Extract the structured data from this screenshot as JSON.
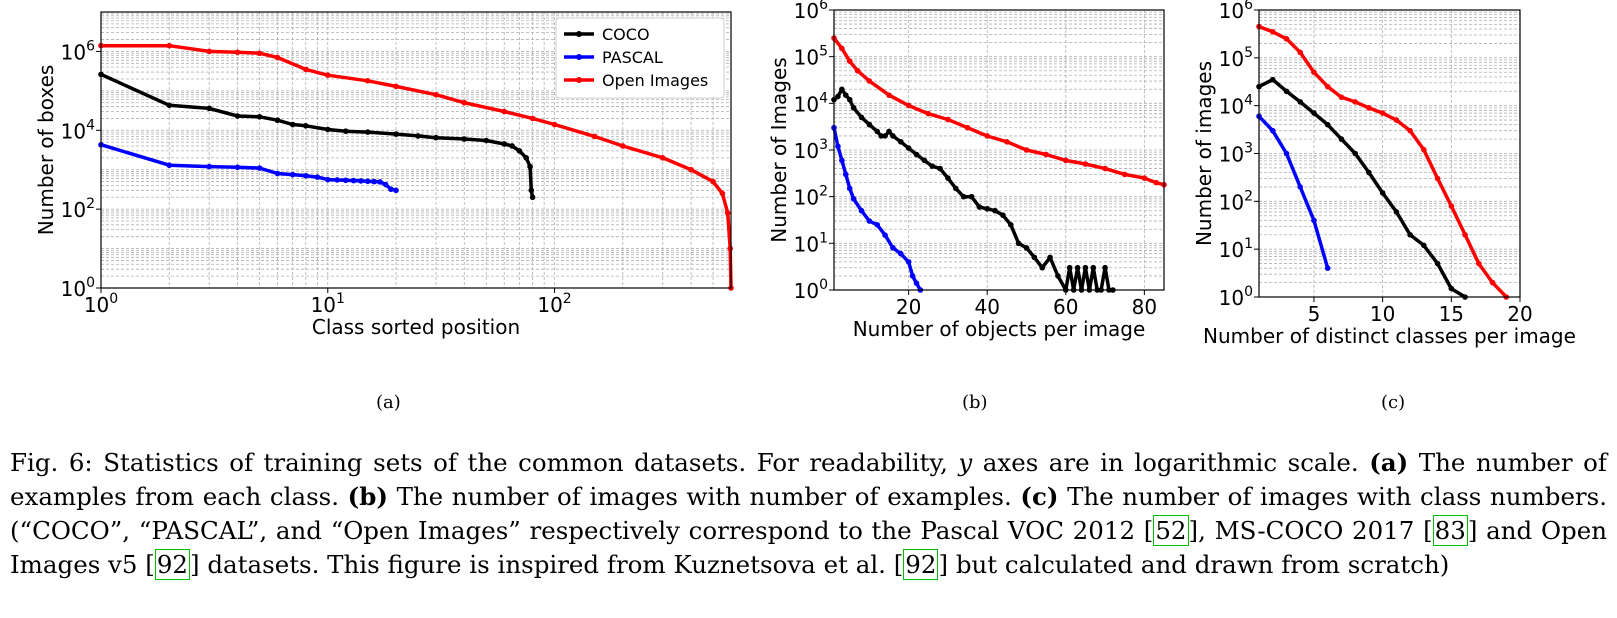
{
  "chart_data": [
    {
      "id": "a",
      "type": "line",
      "xscale": "log",
      "yscale": "log",
      "xlim": [
        1,
        600
      ],
      "ylim": [
        1,
        10000000
      ],
      "xlabel": "Class sorted position",
      "ylabel": "Number of boxes",
      "xticks": [
        1,
        10,
        100
      ],
      "xtick_labels": [
        [
          "10",
          "0"
        ],
        [
          "10",
          "1"
        ],
        [
          "10",
          "2"
        ]
      ],
      "yticks": [
        1,
        100,
        10000,
        1000000
      ],
      "ytick_labels": [
        [
          "10",
          "0"
        ],
        [
          "10",
          "2"
        ],
        [
          "10",
          "4"
        ],
        [
          "10",
          "6"
        ]
      ],
      "grid": true,
      "legend": "top-right",
      "legend_entries": [
        "COCO",
        "PASCAL",
        "Open Images"
      ],
      "series": [
        {
          "name": "COCO",
          "color": "#000000",
          "x": [
            1,
            2,
            3,
            4,
            5,
            6,
            7,
            8,
            10,
            12,
            15,
            20,
            25,
            30,
            40,
            50,
            60,
            65,
            70,
            75,
            78,
            79,
            80
          ],
          "y": [
            262000,
            43000,
            36000,
            23000,
            22000,
            18000,
            14000,
            13000,
            10500,
            9500,
            9000,
            8000,
            7200,
            6500,
            6000,
            5500,
            4500,
            4000,
            3000,
            2000,
            1200,
            300,
            200
          ]
        },
        {
          "name": "PASCAL",
          "color": "#0000ff",
          "x": [
            1,
            2,
            3,
            4,
            5,
            6,
            7,
            8,
            9,
            10,
            11,
            12,
            13,
            14,
            15,
            16,
            17,
            18,
            19,
            20
          ],
          "y": [
            4300,
            1300,
            1200,
            1150,
            1100,
            800,
            750,
            700,
            650,
            560,
            550,
            540,
            530,
            520,
            510,
            500,
            490,
            420,
            320,
            300
          ]
        },
        {
          "name": "Open Images",
          "color": "#ff0000",
          "x": [
            1,
            2,
            3,
            4,
            5,
            6,
            8,
            10,
            15,
            20,
            30,
            40,
            60,
            80,
            100,
            150,
            200,
            300,
            400,
            500,
            550,
            580,
            595,
            600
          ],
          "y": [
            1400000,
            1400000,
            1000000,
            950000,
            900000,
            700000,
            350000,
            250000,
            180000,
            130000,
            80000,
            50000,
            30000,
            20000,
            14000,
            7000,
            4000,
            2000,
            1000,
            500,
            250,
            80,
            10,
            1
          ]
        }
      ]
    },
    {
      "id": "b",
      "type": "line",
      "xscale": "linear",
      "yscale": "log",
      "xlim": [
        1,
        85
      ],
      "ylim": [
        1,
        1000000
      ],
      "xlabel": "Number of objects per image",
      "ylabel": "Number of Images",
      "xticks": [
        20,
        40,
        60,
        80
      ],
      "xtick_labels": [
        "20",
        "40",
        "60",
        "80"
      ],
      "yticks": [
        1,
        10,
        100,
        1000,
        10000,
        100000,
        1000000
      ],
      "ytick_labels": [
        [
          "10",
          "0"
        ],
        [
          "10",
          "1"
        ],
        [
          "10",
          "2"
        ],
        [
          "10",
          "3"
        ],
        [
          "10",
          "4"
        ],
        [
          "10",
          "5"
        ],
        [
          "10",
          "6"
        ]
      ],
      "grid": true,
      "series": [
        {
          "name": "Open Images",
          "color": "#ff0000",
          "x": [
            1,
            3,
            5,
            7,
            10,
            15,
            20,
            25,
            30,
            35,
            40,
            45,
            50,
            55,
            60,
            65,
            70,
            75,
            80,
            83,
            85
          ],
          "y": [
            250000,
            150000,
            80000,
            50000,
            30000,
            15000,
            9000,
            6000,
            4500,
            3000,
            2000,
            1500,
            1000,
            800,
            600,
            500,
            400,
            300,
            250,
            200,
            180
          ]
        },
        {
          "name": "COCO",
          "color": "#000000",
          "x": [
            1,
            2,
            3,
            4,
            5,
            6,
            8,
            10,
            12,
            13,
            14,
            15,
            16,
            18,
            20,
            22,
            24,
            26,
            28,
            30,
            32,
            34,
            36,
            38,
            40,
            42,
            44,
            46,
            48,
            50,
            52,
            54,
            56,
            58,
            60,
            61,
            62,
            63,
            64,
            65,
            66,
            67,
            68,
            69,
            70,
            71,
            72
          ],
          "y": [
            12000,
            14000,
            20000,
            15000,
            12000,
            8000,
            5000,
            3500,
            2500,
            2000,
            2000,
            2500,
            2000,
            1500,
            1100,
            800,
            600,
            450,
            400,
            250,
            150,
            100,
            100,
            60,
            55,
            50,
            40,
            25,
            10,
            8,
            5,
            3,
            5,
            2,
            1,
            3,
            1,
            3,
            1,
            3,
            1,
            3,
            1,
            1,
            3,
            1,
            1
          ]
        },
        {
          "name": "PASCAL",
          "color": "#0000ff",
          "x": [
            1,
            2,
            3,
            4,
            5,
            6,
            8,
            10,
            12,
            14,
            16,
            18,
            20,
            21,
            22,
            23
          ],
          "y": [
            3000,
            1200,
            600,
            300,
            150,
            90,
            50,
            30,
            25,
            15,
            8,
            6,
            4,
            2,
            1.4,
            1
          ]
        }
      ]
    },
    {
      "id": "c",
      "type": "line",
      "xscale": "linear",
      "yscale": "log",
      "xlim": [
        1,
        20
      ],
      "ylim": [
        1,
        1000000
      ],
      "xlabel": "Number of distinct classes per image",
      "ylabel": "Number of images",
      "xticks": [
        5,
        10,
        15,
        20
      ],
      "xtick_labels": [
        "5",
        "10",
        "15",
        "20"
      ],
      "yticks": [
        1,
        10,
        100,
        1000,
        10000,
        100000,
        1000000
      ],
      "ytick_labels": [
        [
          "10",
          "0"
        ],
        [
          "10",
          "1"
        ],
        [
          "10",
          "2"
        ],
        [
          "10",
          "3"
        ],
        [
          "10",
          "4"
        ],
        [
          "10",
          "5"
        ],
        [
          "10",
          "6"
        ]
      ],
      "grid": true,
      "series": [
        {
          "name": "Open Images",
          "color": "#ff0000",
          "x": [
            1,
            2,
            3,
            4,
            5,
            6,
            7,
            8,
            9,
            10,
            11,
            12,
            13,
            14,
            15,
            16,
            17,
            18,
            19
          ],
          "y": [
            450000,
            350000,
            250000,
            130000,
            50000,
            25000,
            15000,
            12000,
            9000,
            7000,
            5000,
            3000,
            1200,
            300,
            80,
            20,
            5,
            2,
            1
          ]
        },
        {
          "name": "COCO",
          "color": "#000000",
          "x": [
            1,
            2,
            3,
            4,
            5,
            6,
            7,
            8,
            9,
            10,
            11,
            12,
            13,
            14,
            15,
            16
          ],
          "y": [
            25000,
            35000,
            20000,
            12000,
            7000,
            4000,
            2000,
            1000,
            400,
            150,
            60,
            20,
            12,
            5,
            1.5,
            1
          ]
        },
        {
          "name": "PASCAL",
          "color": "#0000ff",
          "x": [
            1,
            2,
            3,
            4,
            5,
            6
          ],
          "y": [
            6000,
            3000,
            1000,
            200,
            40,
            4
          ]
        }
      ]
    }
  ],
  "panel_labels": [
    "(a)",
    "(b)",
    "(c)"
  ],
  "caption": {
    "fig": "Fig. 6: Statistics of training sets of the common datasets. For readability,",
    "var": "y",
    "after_var": "axes are in logarithmic scale.",
    "a_label": "(a)",
    "a_text": "The number of examples from each class.",
    "b_label": "(b)",
    "b_text": "The number of images with number of examples.",
    "c_label": "(c)",
    "c_text": "The number of images with class numbers. (“COCO”, “PASCAL”, and “Open Images” respectively correspond to the Pascal VOC 2012 [",
    "ref1": "52",
    "t2": "], MS-COCO 2017 [",
    "ref2": "83",
    "t3": "] and Open Images v5 [",
    "ref3": "92",
    "t4": "] datasets. This figure is inspired from Kuznetsova et al. [",
    "ref4": "92",
    "t5": "] but calculated and drawn from scratch)"
  }
}
